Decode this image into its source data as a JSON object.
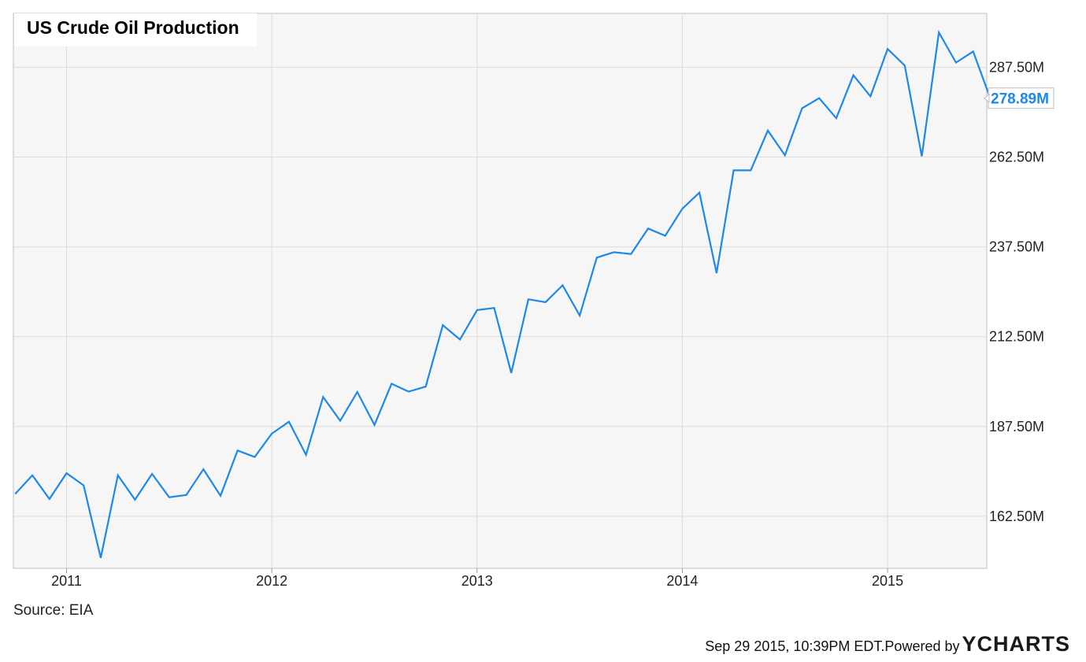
{
  "chart_data": {
    "type": "line",
    "title": "US Crude Oil Production",
    "source": "Source: EIA",
    "x_ticks": [
      "2011",
      "2012",
      "2013",
      "2014",
      "2015"
    ],
    "y_ticks": [
      "162.50M",
      "187.50M",
      "212.50M",
      "237.50M",
      "262.50M",
      "287.50M"
    ],
    "ylim": [
      148.0,
      302.5
    ],
    "grid": true,
    "last_value_label": "278.89M",
    "line_color": "#1e88e5",
    "series": [
      {
        "values": [
          [
            "2010-10",
            168.7
          ],
          [
            "2010-11",
            173.9
          ],
          [
            "2010-12",
            167.3
          ],
          [
            "2011-01",
            174.5
          ],
          [
            "2011-02",
            171.1
          ],
          [
            "2011-03",
            150.9
          ],
          [
            "2011-04",
            173.9
          ],
          [
            "2011-05",
            167.1
          ],
          [
            "2011-06",
            174.3
          ],
          [
            "2011-07",
            167.8
          ],
          [
            "2011-08",
            168.4
          ],
          [
            "2011-09",
            175.6
          ],
          [
            "2011-10",
            168.2
          ],
          [
            "2011-11",
            180.8
          ],
          [
            "2011-12",
            179.0
          ],
          [
            "2012-01",
            185.5
          ],
          [
            "2012-02",
            188.8
          ],
          [
            "2012-03",
            179.6
          ],
          [
            "2012-04",
            195.7
          ],
          [
            "2012-05",
            189.1
          ],
          [
            "2012-06",
            197.1
          ],
          [
            "2012-07",
            187.9
          ],
          [
            "2012-08",
            199.4
          ],
          [
            "2012-09",
            197.2
          ],
          [
            "2012-10",
            198.6
          ],
          [
            "2012-11",
            215.7
          ],
          [
            "2012-12",
            211.7
          ],
          [
            "2013-01",
            219.9
          ],
          [
            "2013-02",
            220.5
          ],
          [
            "2013-03",
            202.4
          ],
          [
            "2013-04",
            222.9
          ],
          [
            "2013-05",
            222.1
          ],
          [
            "2013-06",
            226.8
          ],
          [
            "2013-07",
            218.4
          ],
          [
            "2013-08",
            234.5
          ],
          [
            "2013-09",
            236.0
          ],
          [
            "2013-10",
            235.5
          ],
          [
            "2013-11",
            242.6
          ],
          [
            "2013-12",
            240.6
          ],
          [
            "2014-01",
            248.1
          ],
          [
            "2014-02",
            252.6
          ],
          [
            "2014-03",
            230.2
          ],
          [
            "2014-04",
            258.8
          ],
          [
            "2014-05",
            258.8
          ],
          [
            "2014-06",
            269.9
          ],
          [
            "2014-07",
            263.0
          ],
          [
            "2014-08",
            276.1
          ],
          [
            "2014-09",
            278.9
          ],
          [
            "2014-10",
            273.3
          ],
          [
            "2014-11",
            285.3
          ],
          [
            "2014-12",
            279.4
          ],
          [
            "2015-01",
            292.6
          ],
          [
            "2015-02",
            288.0
          ],
          [
            "2015-03",
            262.7
          ],
          [
            "2015-04",
            297.2
          ],
          [
            "2015-05",
            288.8
          ],
          [
            "2015-06",
            291.9
          ],
          [
            "2015-07",
            278.89
          ]
        ]
      }
    ]
  },
  "footer": {
    "timestamp": "Sep 29 2015, 10:39PM EDT.",
    "powered": "Powered by",
    "logo_y": "Y",
    "logo_rest": "CHARTS"
  }
}
